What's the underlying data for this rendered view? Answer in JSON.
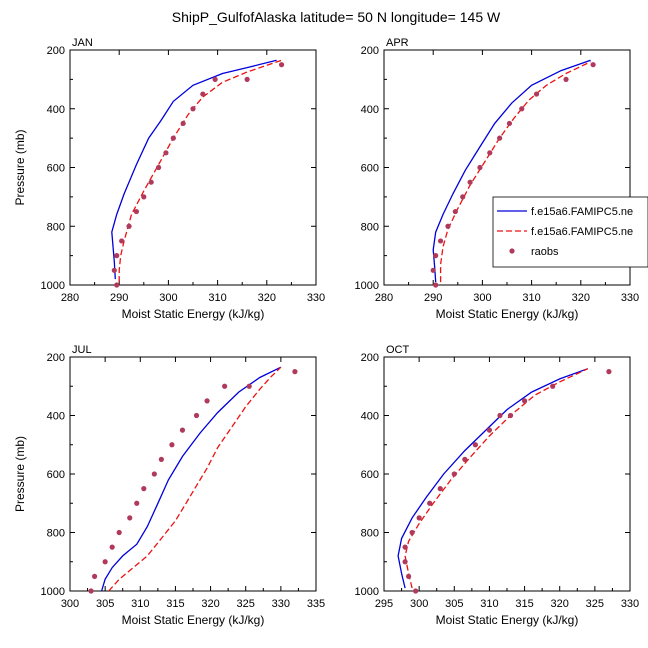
{
  "title": "ShipP_GulfofAlaska  latitude= 50 N longitude= 145 W",
  "legend": {
    "entries": [
      "f.e15a6.FAMIPC5.ne",
      "f.e15a6.FAMIPC5.ne",
      "raobs"
    ]
  },
  "colors": {
    "model1": "#0000dd",
    "model2": "#ee1111",
    "obs": "#b03a5b"
  },
  "chart_data": [
    {
      "type": "line",
      "label": "JAN",
      "xlabel": "Moist Static Energy (kJ/kg)",
      "ylabel": "Pressure (mb)",
      "xlim": [
        280,
        330
      ],
      "ylim": [
        1000,
        200
      ],
      "y_reversed": true,
      "xticks": [
        "280",
        "290",
        "300",
        "310",
        "320",
        "330"
      ],
      "yticks": [
        "200",
        "400",
        "600",
        "800",
        "1000"
      ],
      "series": [
        {
          "style": "solid",
          "color": "#0000dd",
          "points": [
            [
              289.2,
              980
            ],
            [
              289.0,
              920
            ],
            [
              288.5,
              820
            ],
            [
              289.5,
              760
            ],
            [
              291,
              690
            ],
            [
              293.5,
              590
            ],
            [
              296,
              500
            ],
            [
              298.5,
              440
            ],
            [
              301,
              375
            ],
            [
              305,
              320
            ],
            [
              311,
              280
            ],
            [
              316,
              260
            ],
            [
              322,
              235
            ]
          ]
        },
        {
          "style": "dashed",
          "color": "#ee1111",
          "points": [
            [
              290,
              990
            ],
            [
              290,
              950
            ],
            [
              290.3,
              900
            ],
            [
              291,
              850
            ],
            [
              292.5,
              760
            ],
            [
              295,
              680
            ],
            [
              298,
              590
            ],
            [
              301,
              500
            ],
            [
              304,
              420
            ],
            [
              307,
              360
            ],
            [
              311,
              310
            ],
            [
              316,
              275
            ],
            [
              323,
              235
            ]
          ]
        },
        {
          "style": "dots",
          "color": "#b03a5b",
          "points": [
            [
              289.5,
              1000
            ],
            [
              289.0,
              950
            ],
            [
              289.5,
              900
            ],
            [
              290.5,
              850
            ],
            [
              292,
              800
            ],
            [
              293.5,
              750
            ],
            [
              295,
              700
            ],
            [
              296.5,
              650
            ],
            [
              298,
              600
            ],
            [
              299.5,
              550
            ],
            [
              301,
              500
            ],
            [
              303,
              450
            ],
            [
              305,
              400
            ],
            [
              307,
              350
            ],
            [
              309.5,
              300
            ],
            [
              316,
              300
            ],
            [
              323,
              250
            ]
          ]
        }
      ]
    },
    {
      "type": "line",
      "label": "APR",
      "xlabel": "Moist Static Energy (kJ/kg)",
      "ylabel": "",
      "xlim": [
        280,
        330
      ],
      "ylim": [
        1000,
        200
      ],
      "y_reversed": true,
      "xticks": [
        "280",
        "290",
        "300",
        "310",
        "320",
        "330"
      ],
      "yticks": [
        "200",
        "400",
        "600",
        "800",
        "1000"
      ],
      "series": [
        {
          "style": "solid",
          "color": "#0000dd",
          "points": [
            [
              290.5,
              990
            ],
            [
              290.3,
              940
            ],
            [
              290,
              880
            ],
            [
              290.5,
              820
            ],
            [
              292,
              760
            ],
            [
              294,
              690
            ],
            [
              296.5,
              610
            ],
            [
              299.5,
              530
            ],
            [
              302.5,
              450
            ],
            [
              306,
              380
            ],
            [
              310,
              320
            ],
            [
              316,
              270
            ],
            [
              322,
              235
            ]
          ]
        },
        {
          "style": "dashed",
          "color": "#ee1111",
          "points": [
            [
              291.5,
              990
            ],
            [
              291.5,
              930
            ],
            [
              292,
              870
            ],
            [
              293,
              810
            ],
            [
              295,
              740
            ],
            [
              297.5,
              660
            ],
            [
              300.5,
              580
            ],
            [
              303.5,
              500
            ],
            [
              306.5,
              430
            ],
            [
              309.5,
              370
            ],
            [
              313,
              320
            ],
            [
              317,
              280
            ],
            [
              322,
              240
            ]
          ]
        },
        {
          "style": "dots",
          "color": "#b03a5b",
          "points": [
            [
              290.5,
              1000
            ],
            [
              290,
              950
            ],
            [
              290.5,
              900
            ],
            [
              291.5,
              850
            ],
            [
              293,
              800
            ],
            [
              294.5,
              750
            ],
            [
              296,
              700
            ],
            [
              297.5,
              650
            ],
            [
              299.5,
              600
            ],
            [
              301.5,
              550
            ],
            [
              303.5,
              500
            ],
            [
              305.5,
              450
            ],
            [
              308,
              400
            ],
            [
              311,
              350
            ],
            [
              317,
              300
            ],
            [
              322.5,
              250
            ]
          ]
        }
      ]
    },
    {
      "type": "line",
      "label": "JUL",
      "xlabel": "Moist Static Energy (kJ/kg)",
      "ylabel": "Pressure (mb)",
      "xlim": [
        300,
        335
      ],
      "ylim": [
        1000,
        200
      ],
      "y_reversed": true,
      "xticks": [
        "300",
        "305",
        "310",
        "315",
        "320",
        "325",
        "330",
        "335"
      ],
      "yticks": [
        "200",
        "400",
        "600",
        "800",
        "1000"
      ],
      "series": [
        {
          "style": "solid",
          "color": "#0000dd",
          "points": [
            [
              304.5,
              1000
            ],
            [
              305,
              960
            ],
            [
              306,
              920
            ],
            [
              307.5,
              880
            ],
            [
              309.5,
              840
            ],
            [
              311,
              780
            ],
            [
              312.5,
              700
            ],
            [
              314,
              620
            ],
            [
              316,
              540
            ],
            [
              318.5,
              460
            ],
            [
              321,
              390
            ],
            [
              324,
              320
            ],
            [
              327,
              270
            ],
            [
              330,
              235
            ]
          ]
        },
        {
          "style": "dashed",
          "color": "#ee1111",
          "points": [
            [
              305.5,
              1000
            ],
            [
              307,
              960
            ],
            [
              309,
              920
            ],
            [
              311,
              880
            ],
            [
              313,
              820
            ],
            [
              315,
              760
            ],
            [
              316.5,
              700
            ],
            [
              318,
              640
            ],
            [
              319.5,
              580
            ],
            [
              321,
              510
            ],
            [
              323,
              440
            ],
            [
              325,
              370
            ],
            [
              327,
              310
            ],
            [
              328.5,
              270
            ],
            [
              330,
              235
            ]
          ]
        },
        {
          "style": "dots",
          "color": "#b03a5b",
          "points": [
            [
              303,
              1000
            ],
            [
              303.5,
              950
            ],
            [
              305,
              900
            ],
            [
              306,
              850
            ],
            [
              307,
              800
            ],
            [
              308.5,
              750
            ],
            [
              309.5,
              700
            ],
            [
              310.5,
              650
            ],
            [
              312,
              600
            ],
            [
              313,
              550
            ],
            [
              314.5,
              500
            ],
            [
              316,
              450
            ],
            [
              318,
              400
            ],
            [
              319.5,
              350
            ],
            [
              322,
              300
            ],
            [
              325.5,
              300
            ],
            [
              332,
              250
            ]
          ]
        }
      ]
    },
    {
      "type": "line",
      "label": "OCT",
      "xlabel": "Moist Static Energy (kJ/kg)",
      "ylabel": "",
      "xlim": [
        295,
        330
      ],
      "ylim": [
        1000,
        200
      ],
      "y_reversed": true,
      "xticks": [
        "295",
        "300",
        "305",
        "310",
        "315",
        "320",
        "325",
        "330"
      ],
      "yticks": [
        "200",
        "400",
        "600",
        "800",
        "1000"
      ],
      "series": [
        {
          "style": "solid",
          "color": "#0000dd",
          "points": [
            [
              298,
              990
            ],
            [
              297.5,
              940
            ],
            [
              297,
              880
            ],
            [
              297.5,
              820
            ],
            [
              299,
              750
            ],
            [
              301,
              680
            ],
            [
              303.5,
              600
            ],
            [
              306.5,
              520
            ],
            [
              309.5,
              450
            ],
            [
              312.5,
              380
            ],
            [
              316,
              320
            ],
            [
              320,
              275
            ],
            [
              324,
              240
            ]
          ]
        },
        {
          "style": "dashed",
          "color": "#ee1111",
          "points": [
            [
              299,
              990
            ],
            [
              298.5,
              940
            ],
            [
              298,
              880
            ],
            [
              298.5,
              830
            ],
            [
              300,
              770
            ],
            [
              302,
              700
            ],
            [
              304.5,
              620
            ],
            [
              307,
              550
            ],
            [
              310,
              470
            ],
            [
              313,
              400
            ],
            [
              316.5,
              330
            ],
            [
              320,
              285
            ],
            [
              324,
              240
            ]
          ]
        },
        {
          "style": "dots",
          "color": "#b03a5b",
          "points": [
            [
              299.5,
              1000
            ],
            [
              298.5,
              950
            ],
            [
              298,
              900
            ],
            [
              298,
              850
            ],
            [
              299,
              800
            ],
            [
              300,
              750
            ],
            [
              301.5,
              700
            ],
            [
              303,
              650
            ],
            [
              305,
              600
            ],
            [
              306.5,
              550
            ],
            [
              308,
              500
            ],
            [
              310,
              450
            ],
            [
              311.5,
              400
            ],
            [
              313,
              400
            ],
            [
              315,
              350
            ],
            [
              319,
              300
            ],
            [
              327,
              250
            ]
          ]
        }
      ]
    }
  ]
}
